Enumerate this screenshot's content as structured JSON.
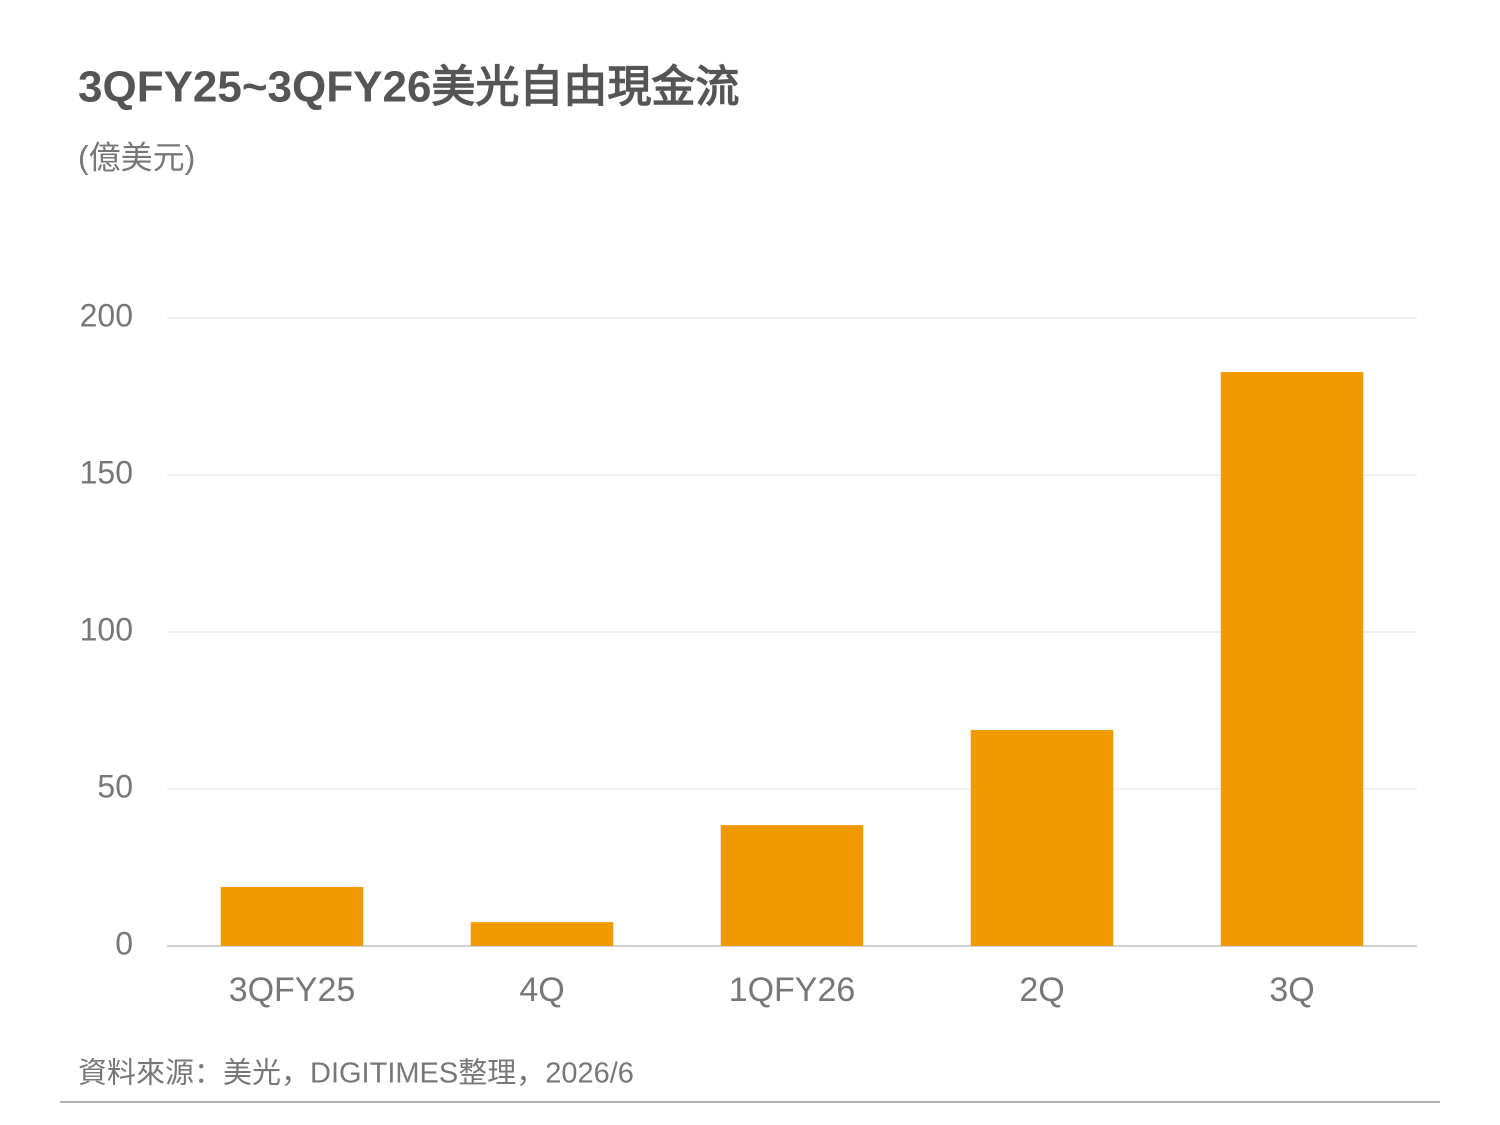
{
  "chart_data": {
    "type": "bar",
    "title": "3QFY25~3QFY26美光自由現金流",
    "subtitle": "(億美元)",
    "categories": [
      "3QFY25",
      "4Q",
      "1QFY26",
      "2Q",
      "3Q"
    ],
    "values": [
      18.8,
      7.6,
      38.5,
      68.8,
      182.8
    ],
    "color": "#f09a00",
    "ylim": [
      0,
      200
    ],
    "yticks": [
      0,
      50,
      100,
      150,
      200
    ],
    "grid": true,
    "source": "資料來源：美光，DIGITIMES整理，2026/6"
  }
}
